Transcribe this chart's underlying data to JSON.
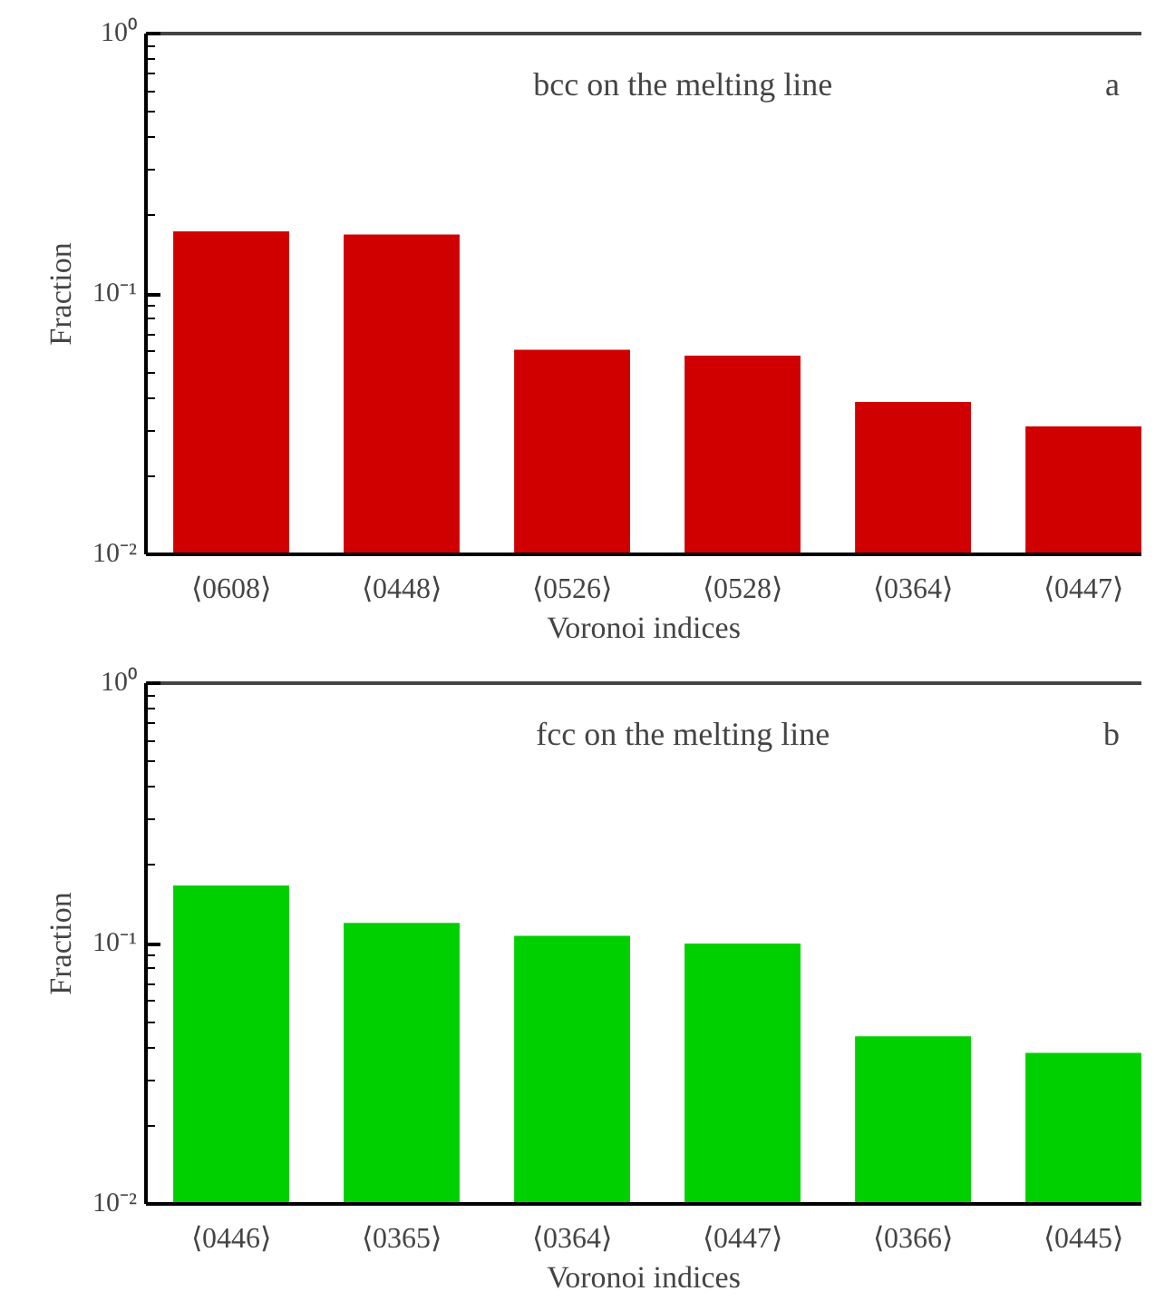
{
  "chart_data": [
    {
      "type": "bar",
      "title": "bcc on the melting line",
      "annotations": [
        "a"
      ],
      "xlabel": "Voronoi indices",
      "ylabel": "Fraction",
      "log": "y",
      "categories": [
        "⟨0608⟩",
        "⟨0448⟩",
        "⟨0526⟩",
        "⟨0528⟩",
        "⟨0364⟩",
        "⟨0447⟩"
      ],
      "values": [
        0.174,
        0.169,
        0.061,
        0.058,
        0.0385,
        0.031
      ],
      "color": "#d00000",
      "ylim": [
        0.01,
        1
      ],
      "yticks": [
        {
          "value": 0.01,
          "label": "10⁻²"
        },
        {
          "value": 0.02,
          "label": null
        },
        {
          "value": 0.03,
          "label": null
        },
        {
          "value": 0.04,
          "label": null
        },
        {
          "value": 0.05,
          "label": null
        },
        {
          "value": 0.06,
          "label": null
        },
        {
          "value": 0.07,
          "label": null
        },
        {
          "value": 0.08,
          "label": null
        },
        {
          "value": 0.09,
          "label": null
        },
        {
          "value": 0.1,
          "label": "10⁻¹"
        },
        {
          "value": 0.2,
          "label": null
        },
        {
          "value": 0.3,
          "label": null
        },
        {
          "value": 0.4,
          "label": null
        },
        {
          "value": 0.5,
          "label": null
        },
        {
          "value": 0.6,
          "label": null
        },
        {
          "value": 0.7,
          "label": null
        },
        {
          "value": 0.8,
          "label": null
        },
        {
          "value": 0.9,
          "label": null
        },
        {
          "value": 1,
          "label": "10⁰"
        }
      ]
    },
    {
      "type": "bar",
      "title": "fcc on the melting line",
      "annotations": [
        "b"
      ],
      "xlabel": "Voronoi indices",
      "ylabel": "Fraction",
      "log": "y",
      "categories": [
        "⟨0446⟩",
        "⟨0365⟩",
        "⟨0364⟩",
        "⟨0447⟩",
        "⟨0366⟩",
        "⟨0445⟩"
      ],
      "values": [
        0.167,
        0.12,
        0.107,
        0.1,
        0.044,
        0.038
      ],
      "color": "#00d000",
      "ylim": [
        0.01,
        1
      ],
      "yticks": [
        {
          "value": 0.01,
          "label": "10⁻²"
        },
        {
          "value": 0.02,
          "label": null
        },
        {
          "value": 0.03,
          "label": null
        },
        {
          "value": 0.04,
          "label": null
        },
        {
          "value": 0.05,
          "label": null
        },
        {
          "value": 0.06,
          "label": null
        },
        {
          "value": 0.07,
          "label": null
        },
        {
          "value": 0.08,
          "label": null
        },
        {
          "value": 0.09,
          "label": null
        },
        {
          "value": 0.1,
          "label": "10⁻¹"
        },
        {
          "value": 0.2,
          "label": null
        },
        {
          "value": 0.3,
          "label": null
        },
        {
          "value": 0.4,
          "label": null
        },
        {
          "value": 0.5,
          "label": null
        },
        {
          "value": 0.6,
          "label": null
        },
        {
          "value": 0.7,
          "label": null
        },
        {
          "value": 0.8,
          "label": null
        },
        {
          "value": 0.9,
          "label": null
        },
        {
          "value": 1,
          "label": "10⁰"
        }
      ]
    }
  ]
}
